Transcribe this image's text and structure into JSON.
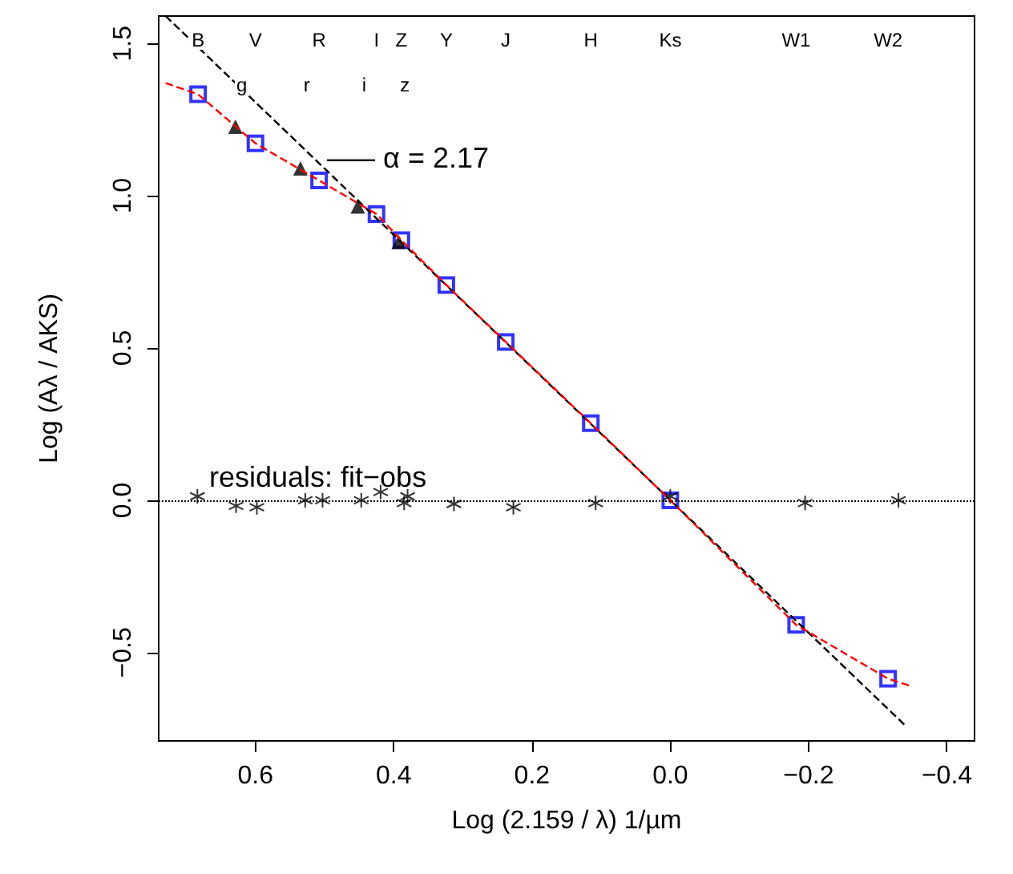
{
  "chart_data": {
    "type": "scatter",
    "xlabel": "Log (2.159 / λ) 1/µm",
    "ylabel": "Log (Aλ / AKS)",
    "xlim": [
      0.74,
      -0.44
    ],
    "xticks": [
      0.6,
      0.4,
      0.2,
      {
        "value": 0,
        "label": "0.0"
      },
      {
        "value": -0.2,
        "label": "−0.2"
      },
      {
        "value": -0.4,
        "label": "−0.4"
      }
    ],
    "ylim": [
      -0.79,
      1.59
    ],
    "yticks": [
      {
        "value": -0.5,
        "label": "−0.5"
      },
      {
        "value": 0,
        "label": "0.0"
      },
      0.5,
      {
        "value": 1,
        "label": "1.0"
      },
      1.5
    ],
    "grid": false,
    "series": [
      {
        "type": "line",
        "color": "#000000",
        "line_style": "dashed",
        "marker": "none",
        "x": [
          0.73,
          -0.34
        ],
        "values": [
          1.59,
          -0.74
        ]
      },
      {
        "type": "line",
        "color": "#ff0000",
        "line_style": "dashed",
        "marker": "none",
        "x": [
          0.73,
          0.683,
          0.6,
          0.508,
          0.425,
          0.389,
          0.324,
          0.238,
          0.115,
          0,
          -0.182,
          -0.315,
          -0.348
        ],
        "values": [
          1.37,
          1.333,
          1.172,
          1.05,
          0.94,
          0.854,
          0.707,
          0.52,
          0.253,
          0,
          -0.409,
          -0.586,
          -0.61
        ]
      },
      {
        "color": "#0000ff",
        "marker": "square",
        "x": [
          0.683,
          0.6,
          0.508,
          0.425,
          0.389,
          0.324,
          0.238,
          0.115,
          0,
          -0.182,
          -0.315
        ],
        "values": [
          1.333,
          1.172,
          1.05,
          0.94,
          0.854,
          0.707,
          0.52,
          0.253,
          0,
          -0.409,
          -0.586
        ]
      },
      {
        "color": "#000000",
        "marker": "triangle",
        "x": [
          0.629,
          0.535,
          0.452,
          0.393
        ],
        "values": [
          1.227,
          1.09,
          0.965,
          0.848
        ]
      },
      {
        "color": "#000000",
        "marker": "cross",
        "x": [
          0.684,
          0.628,
          0.598,
          0.528,
          0.503,
          0.447,
          0.419,
          0.38,
          0.385,
          0.313,
          0.227,
          0.108,
          0,
          -0.195,
          -0.33
        ],
        "values": [
          0.013,
          -0.018,
          -0.023,
          0,
          0,
          0,
          0.027,
          0.013,
          -0.009,
          -0.012,
          -0.023,
          -0.009,
          0.013,
          -0.009,
          0
        ]
      }
    ],
    "ref_lines": [
      {
        "axis": "y",
        "value": 0,
        "color": "#000000",
        "line_style": "dotted"
      }
    ],
    "annotations": [
      "B",
      "V",
      "R",
      "I",
      "Z",
      "Y",
      "J",
      "H",
      "Ks",
      "W1",
      "W2",
      "g",
      "r",
      "i",
      "z",
      "––– α = 2.17",
      "residuals: fit−obs"
    ]
  }
}
